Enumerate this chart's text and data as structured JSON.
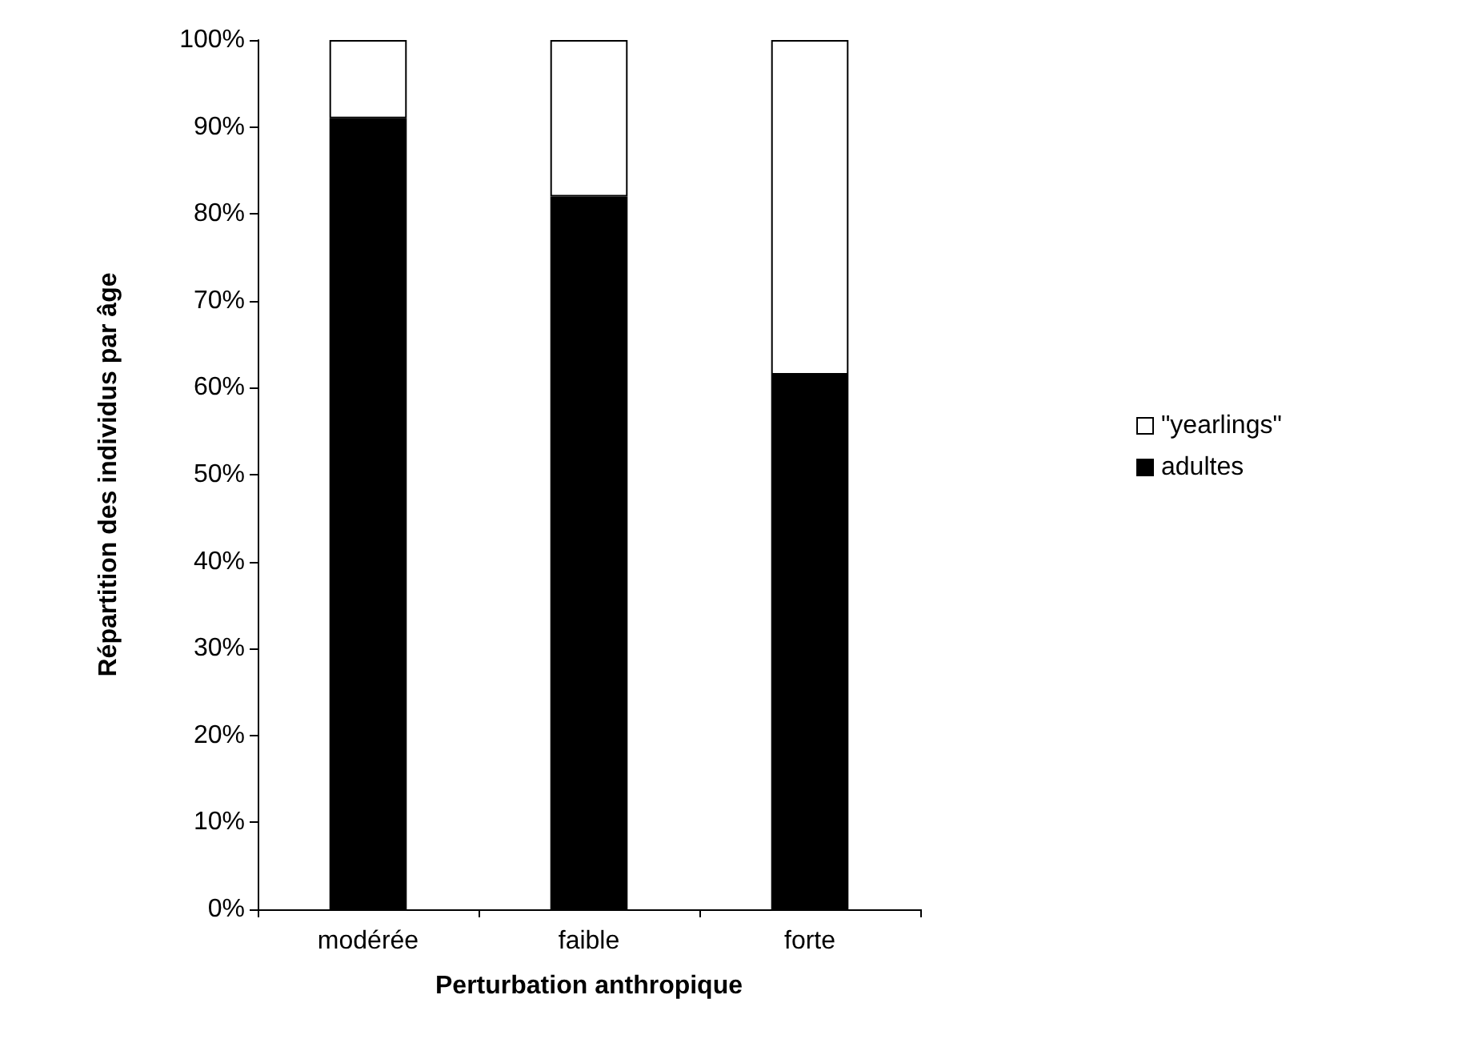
{
  "chart_data": {
    "type": "bar",
    "stacked": true,
    "xlabel": "Perturbation anthropique",
    "ylabel": "Répartition des individus par âge",
    "categories": [
      "modérée",
      "faible",
      "forte"
    ],
    "series": [
      {
        "name": "adultes",
        "color": "#000000",
        "values": [
          91,
          82,
          61.5
        ]
      },
      {
        "name": "\"yearlings\"",
        "color": "#ffffff",
        "values": [
          9,
          18,
          38.5
        ]
      }
    ],
    "ylim": [
      0,
      100
    ],
    "yticks": [
      {
        "value": 0,
        "label": "0%"
      },
      {
        "value": 10,
        "label": "10%"
      },
      {
        "value": 20,
        "label": "20%"
      },
      {
        "value": 30,
        "label": "30%"
      },
      {
        "value": 40,
        "label": "40%"
      },
      {
        "value": 50,
        "label": "50%"
      },
      {
        "value": 60,
        "label": "60%"
      },
      {
        "value": 70,
        "label": "70%"
      },
      {
        "value": 80,
        "label": "80%"
      },
      {
        "value": 90,
        "label": "90%"
      },
      {
        "value": 100,
        "label": "100%"
      }
    ],
    "grid": false,
    "legend": "right"
  }
}
